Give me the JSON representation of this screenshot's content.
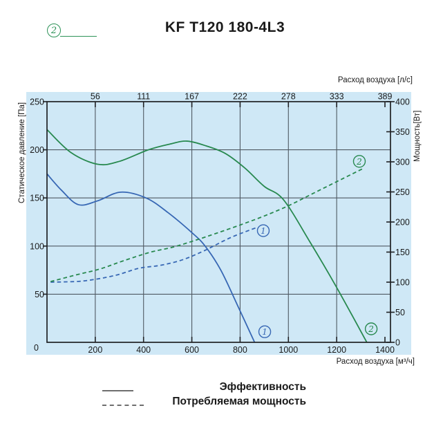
{
  "header": {
    "badge": "2",
    "title": "KF T120 180-4L3"
  },
  "colors": {
    "background": "#cfe8f6",
    "grid": "#4f5962",
    "axis": "#1f2023",
    "curve1": "#3767b4",
    "curve2": "#28894f",
    "accent_green": "#2c9257",
    "legend_line": "#6e6e6e",
    "text": "#1a1a1a"
  },
  "chart_data": {
    "type": "line",
    "title": "KF T120 180-4L3",
    "grid": true,
    "x_axis_bottom": {
      "label": "Расход воздуха [м³/ч]",
      "ticks": [
        0,
        200,
        400,
        600,
        800,
        1000,
        1200,
        1400
      ],
      "range": [
        0,
        1425
      ]
    },
    "x_axis_top": {
      "label": "Расход воздуха [л/с]",
      "tick_labels": [
        56,
        111,
        167,
        222,
        278,
        333,
        389
      ],
      "tick_positions": [
        200,
        400,
        600,
        800,
        1000,
        1200,
        1400
      ]
    },
    "y_axis_left": {
      "label": "Статическое давление [Па]",
      "ticks": [
        0,
        50,
        100,
        150,
        200,
        250
      ],
      "range": [
        0,
        250
      ]
    },
    "y_axis_right": {
      "label": "Мощность[Вт]",
      "ticks": [
        0,
        50,
        100,
        150,
        200,
        250,
        300,
        350,
        400
      ],
      "range": [
        0,
        400
      ]
    },
    "series": [
      {
        "name": "pressure-1",
        "curve": "1",
        "axis": "left",
        "style": "solid",
        "color_key": "curve1",
        "points": [
          [
            0,
            175
          ],
          [
            60,
            158
          ],
          [
            130,
            143
          ],
          [
            210,
            147
          ],
          [
            305,
            156
          ],
          [
            410,
            150
          ],
          [
            500,
            135
          ],
          [
            600,
            114
          ],
          [
            655,
            100
          ],
          [
            720,
            75
          ],
          [
            790,
            38
          ],
          [
            860,
            0
          ]
        ]
      },
      {
        "name": "pressure-2",
        "curve": "2",
        "axis": "left",
        "style": "solid",
        "color_key": "curve2",
        "points": [
          [
            0,
            221
          ],
          [
            100,
            197
          ],
          [
            210,
            185
          ],
          [
            300,
            188
          ],
          [
            420,
            200
          ],
          [
            510,
            206
          ],
          [
            580,
            209
          ],
          [
            660,
            204
          ],
          [
            740,
            196
          ],
          [
            820,
            181
          ],
          [
            900,
            162
          ],
          [
            980,
            148
          ],
          [
            1090,
            104
          ],
          [
            1200,
            57
          ],
          [
            1325,
            0
          ]
        ]
      },
      {
        "name": "power-1",
        "curve": "1",
        "axis": "right",
        "style": "dashed",
        "color_key": "curve1",
        "points": [
          [
            15,
            100
          ],
          [
            150,
            102
          ],
          [
            280,
            111
          ],
          [
            380,
            123
          ],
          [
            470,
            128
          ],
          [
            560,
            137
          ],
          [
            650,
            152
          ],
          [
            760,
            174
          ],
          [
            870,
            191
          ]
        ]
      },
      {
        "name": "power-2",
        "curve": "2",
        "axis": "right",
        "style": "dashed",
        "color_key": "curve2",
        "points": [
          [
            15,
            101
          ],
          [
            120,
            112
          ],
          [
            220,
            122
          ],
          [
            320,
            136
          ],
          [
            430,
            150
          ],
          [
            520,
            158
          ],
          [
            610,
            169
          ],
          [
            700,
            181
          ],
          [
            800,
            195
          ],
          [
            900,
            210
          ],
          [
            1000,
            227
          ],
          [
            1100,
            247
          ],
          [
            1200,
            267
          ],
          [
            1310,
            289
          ]
        ]
      }
    ],
    "markers": [
      {
        "label": "1",
        "color_key": "curve1",
        "x": 896,
        "y_pa": 116
      },
      {
        "label": "1",
        "color_key": "curve1",
        "x": 902,
        "y_pa": 11
      },
      {
        "label": "2",
        "color_key": "curve2",
        "x": 1294,
        "y_pa": 188
      },
      {
        "label": "2",
        "color_key": "curve2",
        "x": 1343,
        "y_pa": 14
      }
    ]
  },
  "legend": {
    "items": [
      {
        "style": "solid",
        "label": "Эффективность"
      },
      {
        "style": "dashed",
        "label": "Потребляемая мощность"
      }
    ]
  }
}
